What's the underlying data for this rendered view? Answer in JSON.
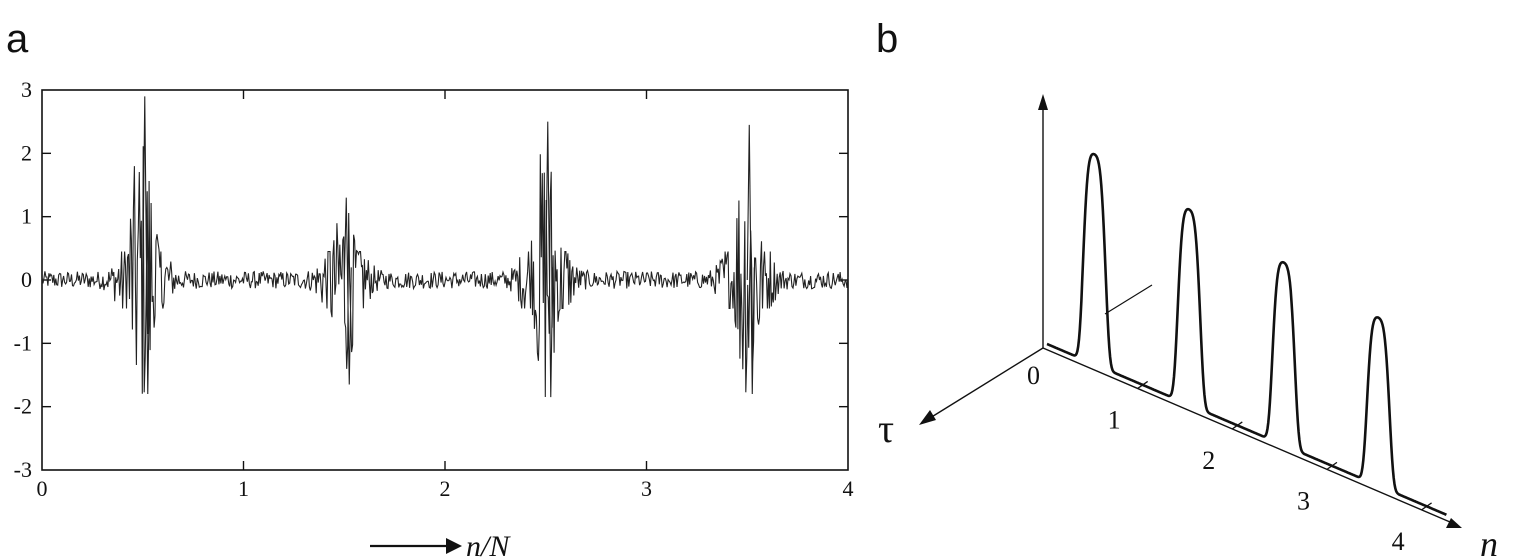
{
  "chart_data": [
    {
      "panel": "a",
      "type": "line",
      "xlabel": "n/N",
      "ylabel": "",
      "xlim": [
        0,
        4
      ],
      "ylim": [
        -3,
        3
      ],
      "x_ticks": [
        "0",
        "1",
        "2",
        "3",
        "4"
      ],
      "y_ticks": [
        "3",
        "2",
        "1",
        "0",
        "-1",
        "-2",
        "-3"
      ],
      "grid": false,
      "series": [
        {
          "noise_level": 0.12,
          "bursts": [
            {
              "center": 0.5,
              "amplitude": 2.9,
              "min": -1.8
            },
            {
              "center": 1.5,
              "amplitude": 1.3,
              "min": -1.65
            },
            {
              "center": 2.5,
              "amplitude": 2.5,
              "min": -1.85
            },
            {
              "center": 3.5,
              "amplitude": 2.45,
              "min": -1.8
            }
          ]
        }
      ]
    },
    {
      "panel": "b",
      "type": "line",
      "xlabel": "n",
      "ylabel": "τ",
      "x_ticks": [
        "0",
        "1",
        "2",
        "3",
        "4"
      ],
      "grid": false,
      "series": [
        {
          "peaks": [
            {
              "n": 0.5,
              "height": 1.0
            },
            {
              "n": 1.5,
              "height": 0.93
            },
            {
              "n": 2.5,
              "height": 0.87
            },
            {
              "n": 3.5,
              "height": 0.8
            }
          ]
        }
      ]
    }
  ]
}
